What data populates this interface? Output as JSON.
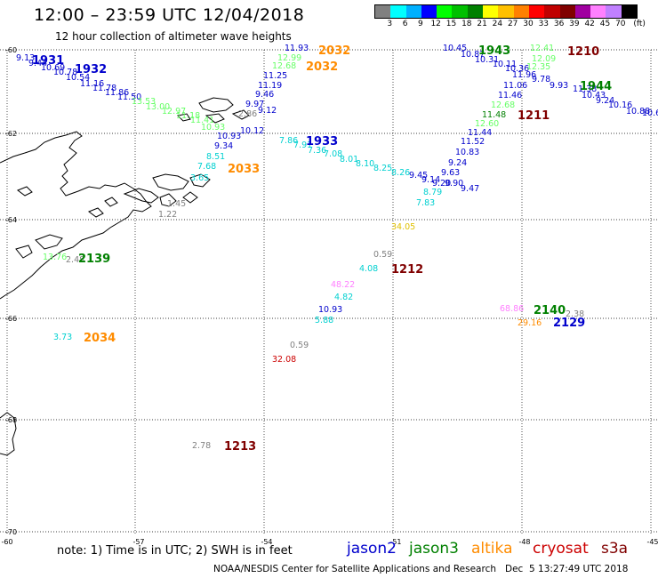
{
  "title": "12:00 – 23:59 UTC 12/04/2018",
  "subtitle": "12 hour collection of altimeter wave heights",
  "colorbar": {
    "colors": [
      "#808080",
      "#00ffff",
      "#00b0ff",
      "#0000ff",
      "#00ff00",
      "#00c000",
      "#008000",
      "#ffff00",
      "#ffc000",
      "#ff8000",
      "#ff0000",
      "#c00000",
      "#800000",
      "#a000a0",
      "#ff80ff",
      "#c080ff",
      "#000000"
    ],
    "labels": [
      "3",
      "6",
      "9",
      "12",
      "15",
      "18",
      "21",
      "24",
      "27",
      "30",
      "33",
      "36",
      "39",
      "42",
      "45",
      "70"
    ],
    "unit": "(ft)"
  },
  "axes": {
    "lat_labels": [
      "-60",
      "-62",
      "-64",
      "-66",
      "-68",
      "-70"
    ],
    "lon_labels": [
      "-60",
      "-57",
      "-54",
      "-51",
      "-48",
      "-45"
    ]
  },
  "satellites": {
    "jason2": "#0000cc",
    "jason3": "#008000",
    "altika": "#ff8c00",
    "cryosat": "#cc0000",
    "s3a": "#800000",
    "other": "#808080",
    "light_green": "#66ff66",
    "cyan": "#00d0d0",
    "pink": "#ff80ff",
    "yellow": "#e0c000"
  },
  "points": [
    {
      "text": "9.13",
      "c": "jason2"
    },
    {
      "text": "9.44",
      "c": "jason2"
    },
    {
      "text": "10.69",
      "c": "jason2"
    },
    {
      "text": "10.78",
      "c": "jason2"
    },
    {
      "text": "10.54",
      "c": "jason2"
    },
    {
      "text": "11.16",
      "c": "jason2"
    },
    {
      "text": "11.78",
      "c": "jason2"
    },
    {
      "text": "11.86",
      "c": "jason2"
    },
    {
      "text": "11.50",
      "c": "jason2"
    },
    {
      "text": "13.53",
      "c": "light_green"
    },
    {
      "text": "13.00",
      "c": "light_green"
    },
    {
      "text": "12.97",
      "c": "light_green"
    },
    {
      "text": "11.18",
      "c": "light_green"
    },
    {
      "text": "11.41",
      "c": "light_green"
    },
    {
      "text": "10.93",
      "c": "light_green"
    },
    {
      "text": "2.86",
      "c": "other"
    },
    {
      "text": "10.12",
      "c": "jason2"
    },
    {
      "text": "10.93",
      "c": "jason2"
    },
    {
      "text": "9.34",
      "c": "jason2"
    },
    {
      "text": "8.51",
      "c": "cyan"
    },
    {
      "text": "7.68",
      "c": "cyan"
    },
    {
      "text": "3.65",
      "c": "cyan"
    },
    {
      "text": "1.45",
      "c": "other"
    },
    {
      "text": "1.22",
      "c": "other"
    },
    {
      "text": "11.93",
      "c": "jason2"
    },
    {
      "text": "12.99",
      "c": "light_green"
    },
    {
      "text": "12.68",
      "c": "light_green"
    },
    {
      "text": "11.25",
      "c": "jason2"
    },
    {
      "text": "11.19",
      "c": "jason2"
    },
    {
      "text": "9.46",
      "c": "jason2"
    },
    {
      "text": "9.97",
      "c": "jason2"
    },
    {
      "text": "9.12",
      "c": "jason2"
    },
    {
      "text": "7.86",
      "c": "cyan"
    },
    {
      "text": "7.91",
      "c": "cyan"
    },
    {
      "text": "7.36",
      "c": "cyan"
    },
    {
      "text": "7.08",
      "c": "cyan"
    },
    {
      "text": "8.01",
      "c": "cyan"
    },
    {
      "text": "8.10",
      "c": "cyan"
    },
    {
      "text": "8.25",
      "c": "cyan"
    },
    {
      "text": "8.26",
      "c": "cyan"
    },
    {
      "text": "9.45",
      "c": "jason2"
    },
    {
      "text": "9.14",
      "c": "jason2"
    },
    {
      "text": "9.20",
      "c": "jason2"
    },
    {
      "text": "9.90",
      "c": "jason2"
    },
    {
      "text": "8.79",
      "c": "cyan"
    },
    {
      "text": "7.83",
      "c": "cyan"
    },
    {
      "text": "9.47",
      "c": "jason2"
    },
    {
      "text": "10.45",
      "c": "jason2"
    },
    {
      "text": "10.87",
      "c": "jason2"
    },
    {
      "text": "10.31",
      "c": "jason2"
    },
    {
      "text": "10.11",
      "c": "jason2"
    },
    {
      "text": "10.36",
      "c": "jason2"
    },
    {
      "text": "11.06",
      "c": "jason2"
    },
    {
      "text": "11.46",
      "c": "jason2"
    },
    {
      "text": "12.68",
      "c": "light_green"
    },
    {
      "text": "11.48",
      "c": "jason3"
    },
    {
      "text": "12.60",
      "c": "light_green"
    },
    {
      "text": "11.44",
      "c": "jason2"
    },
    {
      "text": "11.52",
      "c": "jason2"
    },
    {
      "text": "10.83",
      "c": "jason2"
    },
    {
      "text": "9.24",
      "c": "jason2"
    },
    {
      "text": "9.63",
      "c": "jason2"
    },
    {
      "text": "12.41",
      "c": "light_green"
    },
    {
      "text": "12.09",
      "c": "light_green"
    },
    {
      "text": "12.35",
      "c": "light_green"
    },
    {
      "text": "11.96",
      "c": "jason2"
    },
    {
      "text": "9.78",
      "c": "jason2"
    },
    {
      "text": "9.93",
      "c": "jason2"
    },
    {
      "text": "11.38",
      "c": "jason2"
    },
    {
      "text": "10.43",
      "c": "jason2"
    },
    {
      "text": "9.24",
      "c": "jason2"
    },
    {
      "text": "10.16",
      "c": "jason2"
    },
    {
      "text": "10.88",
      "c": "jason2"
    },
    {
      "text": "10.6",
      "c": "jason2"
    },
    {
      "text": "34.05",
      "c": "yellow"
    },
    {
      "text": "0.59",
      "c": "other"
    },
    {
      "text": "4.08",
      "c": "cyan"
    },
    {
      "text": "48.22",
      "c": "pink"
    },
    {
      "text": "4.82",
      "c": "cyan"
    },
    {
      "text": "10.93",
      "c": "jason2"
    },
    {
      "text": "5.88",
      "c": "cyan"
    },
    {
      "text": "0.59",
      "c": "other"
    },
    {
      "text": "32.08",
      "c": "cryosat"
    },
    {
      "text": "68.86",
      "c": "pink"
    },
    {
      "text": "29.16",
      "c": "altika"
    },
    {
      "text": "2.38",
      "c": "other"
    },
    {
      "text": "13.76",
      "c": "light_green"
    },
    {
      "text": "2.48",
      "c": "other"
    },
    {
      "text": "3.73",
      "c": "cyan"
    },
    {
      "text": "2.78",
      "c": "other"
    }
  ],
  "pass_labels": [
    {
      "text": "1931",
      "c": "jason2"
    },
    {
      "text": "1932",
      "c": "jason2"
    },
    {
      "text": "2032",
      "c": "altika"
    },
    {
      "text": "2032",
      "c": "altika"
    },
    {
      "text": "1943",
      "c": "jason3"
    },
    {
      "text": "1210",
      "c": "s3a"
    },
    {
      "text": "1944",
      "c": "jason3"
    },
    {
      "text": "1211",
      "c": "s3a"
    },
    {
      "text": "1933",
      "c": "jason2"
    },
    {
      "text": "2033",
      "c": "altika"
    },
    {
      "text": "2139",
      "c": "jason3"
    },
    {
      "text": "1212",
      "c": "s3a"
    },
    {
      "text": "2034",
      "c": "altika"
    },
    {
      "text": "2140",
      "c": "jason3"
    },
    {
      "text": "2129",
      "c": "jason2"
    },
    {
      "text": "1213",
      "c": "s3a"
    }
  ],
  "note": "note:  1) Time is in UTC;  2) SWH is in feet",
  "legend": [
    {
      "label": "jason2",
      "color": "#0000cc"
    },
    {
      "label": "jason3",
      "color": "#008000"
    },
    {
      "label": "altika",
      "color": "#ff8c00"
    },
    {
      "label": "cryosat",
      "color": "#cc0000"
    },
    {
      "label": "s3a",
      "color": "#800000"
    }
  ],
  "credit": "NOAA/NESDIS Center for Satellite Applications and Research   Dec  5 13:27:49 UTC 2018"
}
